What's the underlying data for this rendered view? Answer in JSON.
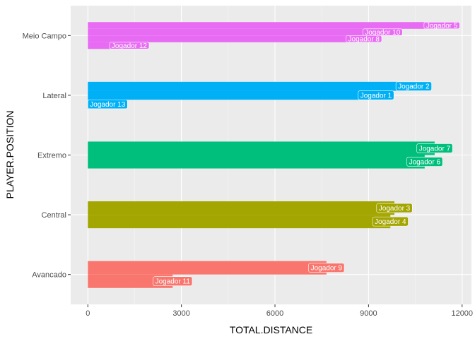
{
  "chart_data": {
    "type": "bar",
    "orientation": "horizontal",
    "xlabel": "TOTAL.DISTANCE",
    "ylabel": "PLAYER.POSITION",
    "xlim": [
      -550,
      12300
    ],
    "x_ticks": [
      0,
      3000,
      6000,
      9000,
      12000
    ],
    "x_tick_labels": [
      "0",
      "3000",
      "6000",
      "9000",
      "12000"
    ],
    "categories": [
      "Avancado",
      "Central",
      "Extremo",
      "Lateral",
      "Meio Campo"
    ],
    "grid": true,
    "legend": "none",
    "colors": {
      "Avancado": "#F8766D",
      "Central": "#A3A500",
      "Extremo": "#00BF7D",
      "Lateral": "#00B0F6",
      "Meio Campo": "#E76BF3"
    },
    "groups": [
      {
        "category": "Avancado",
        "bars": [
          {
            "player": "Jogador 9",
            "value": 7650
          },
          {
            "player": "Jogador 11",
            "value": 2720
          }
        ]
      },
      {
        "category": "Central",
        "bars": [
          {
            "player": "Jogador 3",
            "value": 9830
          },
          {
            "player": "Jogador 4",
            "value": 9700
          }
        ]
      },
      {
        "category": "Extremo",
        "bars": [
          {
            "player": "Jogador 7",
            "value": 11120
          },
          {
            "player": "Jogador 6",
            "value": 10800
          }
        ]
      },
      {
        "category": "Lateral",
        "bars": [
          {
            "player": "Jogador 2",
            "value": 10450
          },
          {
            "player": "Jogador 1",
            "value": 9240
          },
          {
            "player": "Jogador 13",
            "value": 30
          }
        ]
      },
      {
        "category": "Meio Campo",
        "bars": [
          {
            "player": "Jogador 5",
            "value": 11350
          },
          {
            "player": "Jogador 10",
            "value": 9450
          },
          {
            "player": "Jogador 8",
            "value": 8850
          },
          {
            "player": "Jogador 12",
            "value": 1330
          }
        ]
      }
    ]
  }
}
